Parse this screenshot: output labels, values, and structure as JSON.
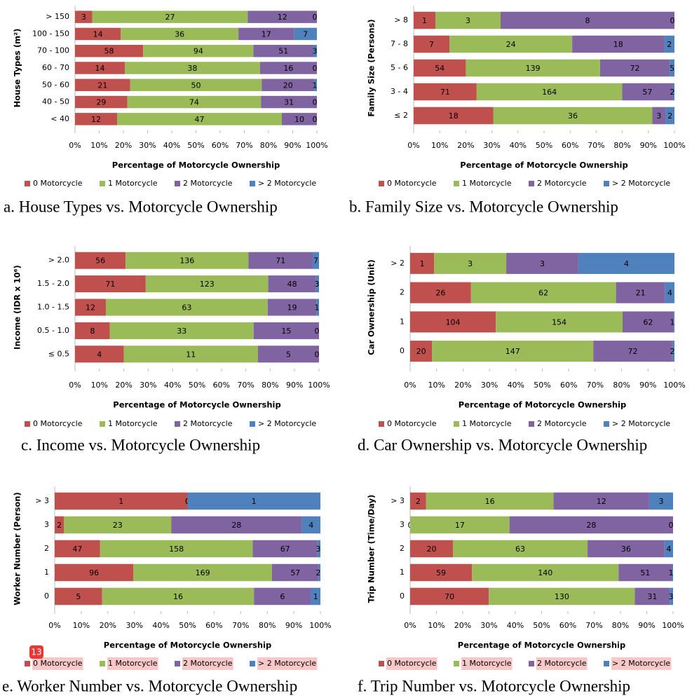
{
  "badge": "13",
  "chart_data": [
    {
      "type": "bar",
      "stacking": "percent",
      "title": "a. House Types vs. Motorcycle Ownership",
      "xlabel": "Percentage of Motorcycle Ownership",
      "ylabel": "House Types (m²)",
      "categories": [
        "> 150",
        "100 - 150",
        "70 - 100",
        "60 - 70",
        "50 - 60",
        "40 - 50",
        "< 40"
      ],
      "series": [
        {
          "name": "0 Motorcycle",
          "color": "#c0504d",
          "values": [
            3,
            14,
            58,
            14,
            21,
            29,
            12
          ]
        },
        {
          "name": "1 Motorcycle",
          "color": "#9bbb59",
          "values": [
            27,
            36,
            94,
            38,
            50,
            74,
            47
          ]
        },
        {
          "name": "2 Motorcycle",
          "color": "#8064a2",
          "values": [
            12,
            17,
            51,
            16,
            20,
            31,
            10
          ]
        },
        {
          "name": "> 2 Motorcycle",
          "color": "#4f81bd",
          "values": [
            0,
            7,
            3,
            0,
            1,
            0,
            0
          ]
        }
      ],
      "xlim": [
        0,
        100
      ],
      "xticks": [
        {
          "value": 0,
          "label": "0%"
        },
        {
          "value": 10,
          "label": "10%"
        },
        {
          "value": 20,
          "label": "20%"
        },
        {
          "value": 30,
          "label": "30%"
        },
        {
          "value": 40,
          "label": "40%"
        },
        {
          "value": 50,
          "label": "50%"
        },
        {
          "value": 60,
          "label": "60%"
        },
        {
          "value": 70,
          "label": "70%"
        },
        {
          "value": 80,
          "label": "80%"
        },
        {
          "value": 90,
          "label": "90%"
        },
        {
          "value": 100,
          "label": "100%"
        }
      ],
      "legend": "bottom"
    },
    {
      "type": "bar",
      "stacking": "percent",
      "title": "b. Family Size vs. Motorcycle Ownership",
      "xlabel": "Percentage of Motorcycle Ownership",
      "ylabel": "Family Size (Persons)",
      "categories": [
        "> 8",
        "7 - 8",
        "5 - 6",
        "3 - 4",
        "≤ 2"
      ],
      "series": [
        {
          "name": "0 Motorcycle",
          "color": "#c0504d",
          "values": [
            1,
            7,
            54,
            71,
            18
          ]
        },
        {
          "name": "1 Motorcycle",
          "color": "#9bbb59",
          "values": [
            3,
            24,
            139,
            164,
            36
          ]
        },
        {
          "name": "2 Motorcycle",
          "color": "#8064a2",
          "values": [
            8,
            18,
            72,
            57,
            3
          ]
        },
        {
          "name": "> 2 Motorcycle",
          "color": "#4f81bd",
          "values": [
            0,
            2,
            5,
            2,
            2
          ]
        }
      ],
      "xlim": [
        0,
        100
      ],
      "xticks": [
        {
          "value": 0,
          "label": "0%"
        },
        {
          "value": 10,
          "label": "10%"
        },
        {
          "value": 20,
          "label": "20%"
        },
        {
          "value": 30,
          "label": "30%"
        },
        {
          "value": 40,
          "label": "40%"
        },
        {
          "value": 50,
          "label": "50%"
        },
        {
          "value": 60,
          "label": "60%"
        },
        {
          "value": 70,
          "label": "70%"
        },
        {
          "value": 80,
          "label": "80%"
        },
        {
          "value": 90,
          "label": "90%"
        },
        {
          "value": 100,
          "label": "100%"
        }
      ],
      "legend": "bottom"
    },
    {
      "type": "bar",
      "stacking": "percent",
      "title": "c. Income vs. Motorcycle Ownership",
      "xlabel": "Percentage of Motorcycle Ownership",
      "ylabel": "Income (IDR x 10⁶)",
      "categories": [
        "> 2.0",
        "1.5 - 2.0",
        "1.0 - 1.5",
        "0.5 - 1.0",
        "≤ 0.5"
      ],
      "series": [
        {
          "name": "0 Motorcycle",
          "color": "#c0504d",
          "values": [
            56,
            71,
            12,
            8,
            4
          ]
        },
        {
          "name": "1 Motorcycle",
          "color": "#9bbb59",
          "values": [
            136,
            123,
            63,
            33,
            11
          ]
        },
        {
          "name": "2 Motorcycle",
          "color": "#8064a2",
          "values": [
            71,
            48,
            19,
            15,
            5
          ]
        },
        {
          "name": "> 2 Motorcycle",
          "color": "#4f81bd",
          "values": [
            7,
            3,
            1,
            0,
            0
          ]
        }
      ],
      "xlim": [
        0,
        100
      ],
      "xticks": [
        {
          "value": 0,
          "label": "0%"
        },
        {
          "value": 10,
          "label": "10%"
        },
        {
          "value": 20,
          "label": "20%"
        },
        {
          "value": 30,
          "label": "30%"
        },
        {
          "value": 40,
          "label": "40%"
        },
        {
          "value": 50,
          "label": "50%"
        },
        {
          "value": 60,
          "label": "60%"
        },
        {
          "value": 70,
          "label": "70%"
        },
        {
          "value": 80,
          "label": "80%"
        },
        {
          "value": 90,
          "label": "90%"
        },
        {
          "value": 100,
          "label": "100%"
        }
      ],
      "legend": "bottom"
    },
    {
      "type": "bar",
      "stacking": "percent",
      "title": "d. Car Ownership vs. Motorcycle Ownership",
      "xlabel": "Percentage of Motorcycle Ownership",
      "ylabel": "Car Ownership (Unit)",
      "categories": [
        "> 2",
        "2",
        "1",
        "0"
      ],
      "series": [
        {
          "name": "0 Motorcycle",
          "color": "#c0504d",
          "values": [
            1,
            26,
            104,
            20
          ]
        },
        {
          "name": "1 Motorcycle",
          "color": "#9bbb59",
          "values": [
            3,
            62,
            154,
            147
          ]
        },
        {
          "name": "2 Motorcycle",
          "color": "#8064a2",
          "values": [
            3,
            21,
            62,
            72
          ]
        },
        {
          "name": "> 2 Motorcycle",
          "color": "#4f81bd",
          "values": [
            4,
            4,
            1,
            2
          ]
        }
      ],
      "xlim": [
        0,
        100
      ],
      "xticks": [
        {
          "value": 0,
          "label": "0%"
        },
        {
          "value": 10,
          "label": "10%"
        },
        {
          "value": 20,
          "label": "20%"
        },
        {
          "value": 30,
          "label": "30%"
        },
        {
          "value": 40,
          "label": "40%"
        },
        {
          "value": 50,
          "label": "50%"
        },
        {
          "value": 60,
          "label": "60%"
        },
        {
          "value": 70,
          "label": "70%"
        },
        {
          "value": 80,
          "label": "80%"
        },
        {
          "value": 90,
          "label": "90%"
        },
        {
          "value": 100,
          "label": "100%"
        }
      ],
      "legend": "bottom"
    },
    {
      "type": "bar",
      "stacking": "percent",
      "title": "e. Worker Number vs. Motorcycle Ownership",
      "xlabel": "Percentage of Motorcycle Ownership",
      "ylabel": "Worker Number (Person)",
      "categories": [
        "> 3",
        "3",
        "2",
        "1",
        "0"
      ],
      "series": [
        {
          "name": "0 Motorcycle",
          "color": "#c0504d",
          "values": [
            1,
            2,
            47,
            96,
            5
          ]
        },
        {
          "name": "1 Motorcycle",
          "color": "#9bbb59",
          "values": [
            0,
            23,
            158,
            169,
            16
          ]
        },
        {
          "name": "2 Motorcycle",
          "color": "#8064a2",
          "values": [
            0,
            28,
            67,
            57,
            6
          ]
        },
        {
          "name": "> 2 Motorcycle",
          "color": "#4f81bd",
          "values": [
            1,
            4,
            3,
            2,
            1
          ]
        }
      ],
      "xlim": [
        0,
        100
      ],
      "xticks": [
        {
          "value": 0,
          "label": "0%"
        },
        {
          "value": 10,
          "label": "10%"
        },
        {
          "value": 20,
          "label": "20%"
        },
        {
          "value": 30,
          "label": "30%"
        },
        {
          "value": 40,
          "label": "40%"
        },
        {
          "value": 50,
          "label": "50%"
        },
        {
          "value": 60,
          "label": "60%"
        },
        {
          "value": 70,
          "label": "70%"
        },
        {
          "value": 80,
          "label": "80%"
        },
        {
          "value": 90,
          "label": "90%"
        },
        {
          "value": 100,
          "label": "100%"
        }
      ],
      "legend": "bottom"
    },
    {
      "type": "bar",
      "stacking": "percent",
      "title": "f. Trip Number vs. Motorcycle Ownership",
      "xlabel": "Percentage of Motorcycle Ownership",
      "ylabel": "Trip Number (Time/Day)",
      "categories": [
        "> 3",
        "3",
        "2",
        "1",
        "0"
      ],
      "series": [
        {
          "name": "0 Motorcycle",
          "color": "#c0504d",
          "values": [
            2,
            0,
            20,
            59,
            70
          ]
        },
        {
          "name": "1 Motorcycle",
          "color": "#9bbb59",
          "values": [
            16,
            17,
            63,
            140,
            130
          ]
        },
        {
          "name": "2 Motorcycle",
          "color": "#8064a2",
          "values": [
            12,
            28,
            36,
            51,
            31
          ]
        },
        {
          "name": "> 2 Motorcycle",
          "color": "#4f81bd",
          "values": [
            3,
            0,
            4,
            1,
            3
          ]
        }
      ],
      "xlim": [
        0,
        100
      ],
      "xticks": [
        {
          "value": 0,
          "label": "0%"
        },
        {
          "value": 10,
          "label": "10%"
        },
        {
          "value": 20,
          "label": "20%"
        },
        {
          "value": 30,
          "label": "30%"
        },
        {
          "value": 40,
          "label": "40%"
        },
        {
          "value": 50,
          "label": "50%"
        },
        {
          "value": 60,
          "label": "60%"
        },
        {
          "value": 70,
          "label": "70%"
        },
        {
          "value": 80,
          "label": "80%"
        },
        {
          "value": 90,
          "label": "90%"
        },
        {
          "value": 100,
          "label": "100%"
        }
      ],
      "legend": "bottom"
    }
  ]
}
